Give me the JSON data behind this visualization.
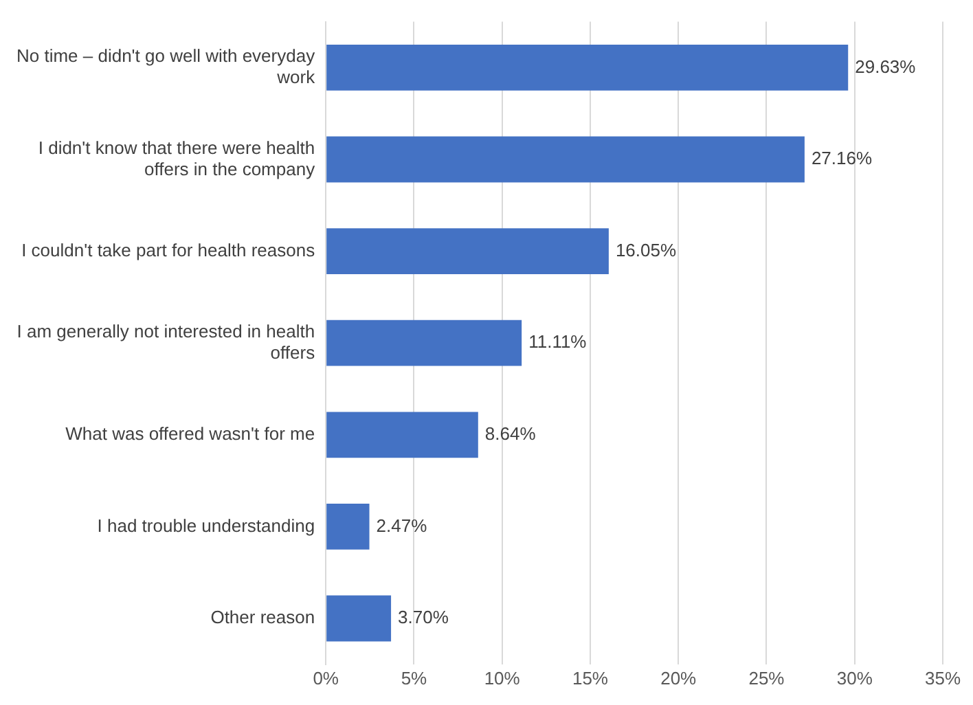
{
  "chart_data": {
    "type": "bar",
    "orientation": "horizontal",
    "categories": [
      "No time – didn't go well with everyday work",
      "I didn't know that there were health offers in the company",
      "I couldn't take part for health reasons",
      "I am generally not interested in health offers",
      "What was offered wasn't for me",
      "I had trouble understanding",
      "Other reason"
    ],
    "values": [
      29.63,
      27.16,
      16.05,
      11.11,
      8.64,
      2.47,
      3.7
    ],
    "value_labels": [
      "29.63%",
      "27.16%",
      "16.05%",
      "11.11%",
      "8.64%",
      "2.47%",
      "3.70%"
    ],
    "color": "#4472c4",
    "xlim": [
      0,
      35
    ],
    "xticks": [
      {
        "value": 0,
        "label": "0%"
      },
      {
        "value": 5,
        "label": "5%"
      },
      {
        "value": 10,
        "label": "10%"
      },
      {
        "value": 15,
        "label": "15%"
      },
      {
        "value": 20,
        "label": "20%"
      },
      {
        "value": 25,
        "label": "25%"
      },
      {
        "value": 30,
        "label": "30%"
      },
      {
        "value": 35,
        "label": "35%"
      }
    ],
    "grid": "x",
    "legend": false
  }
}
